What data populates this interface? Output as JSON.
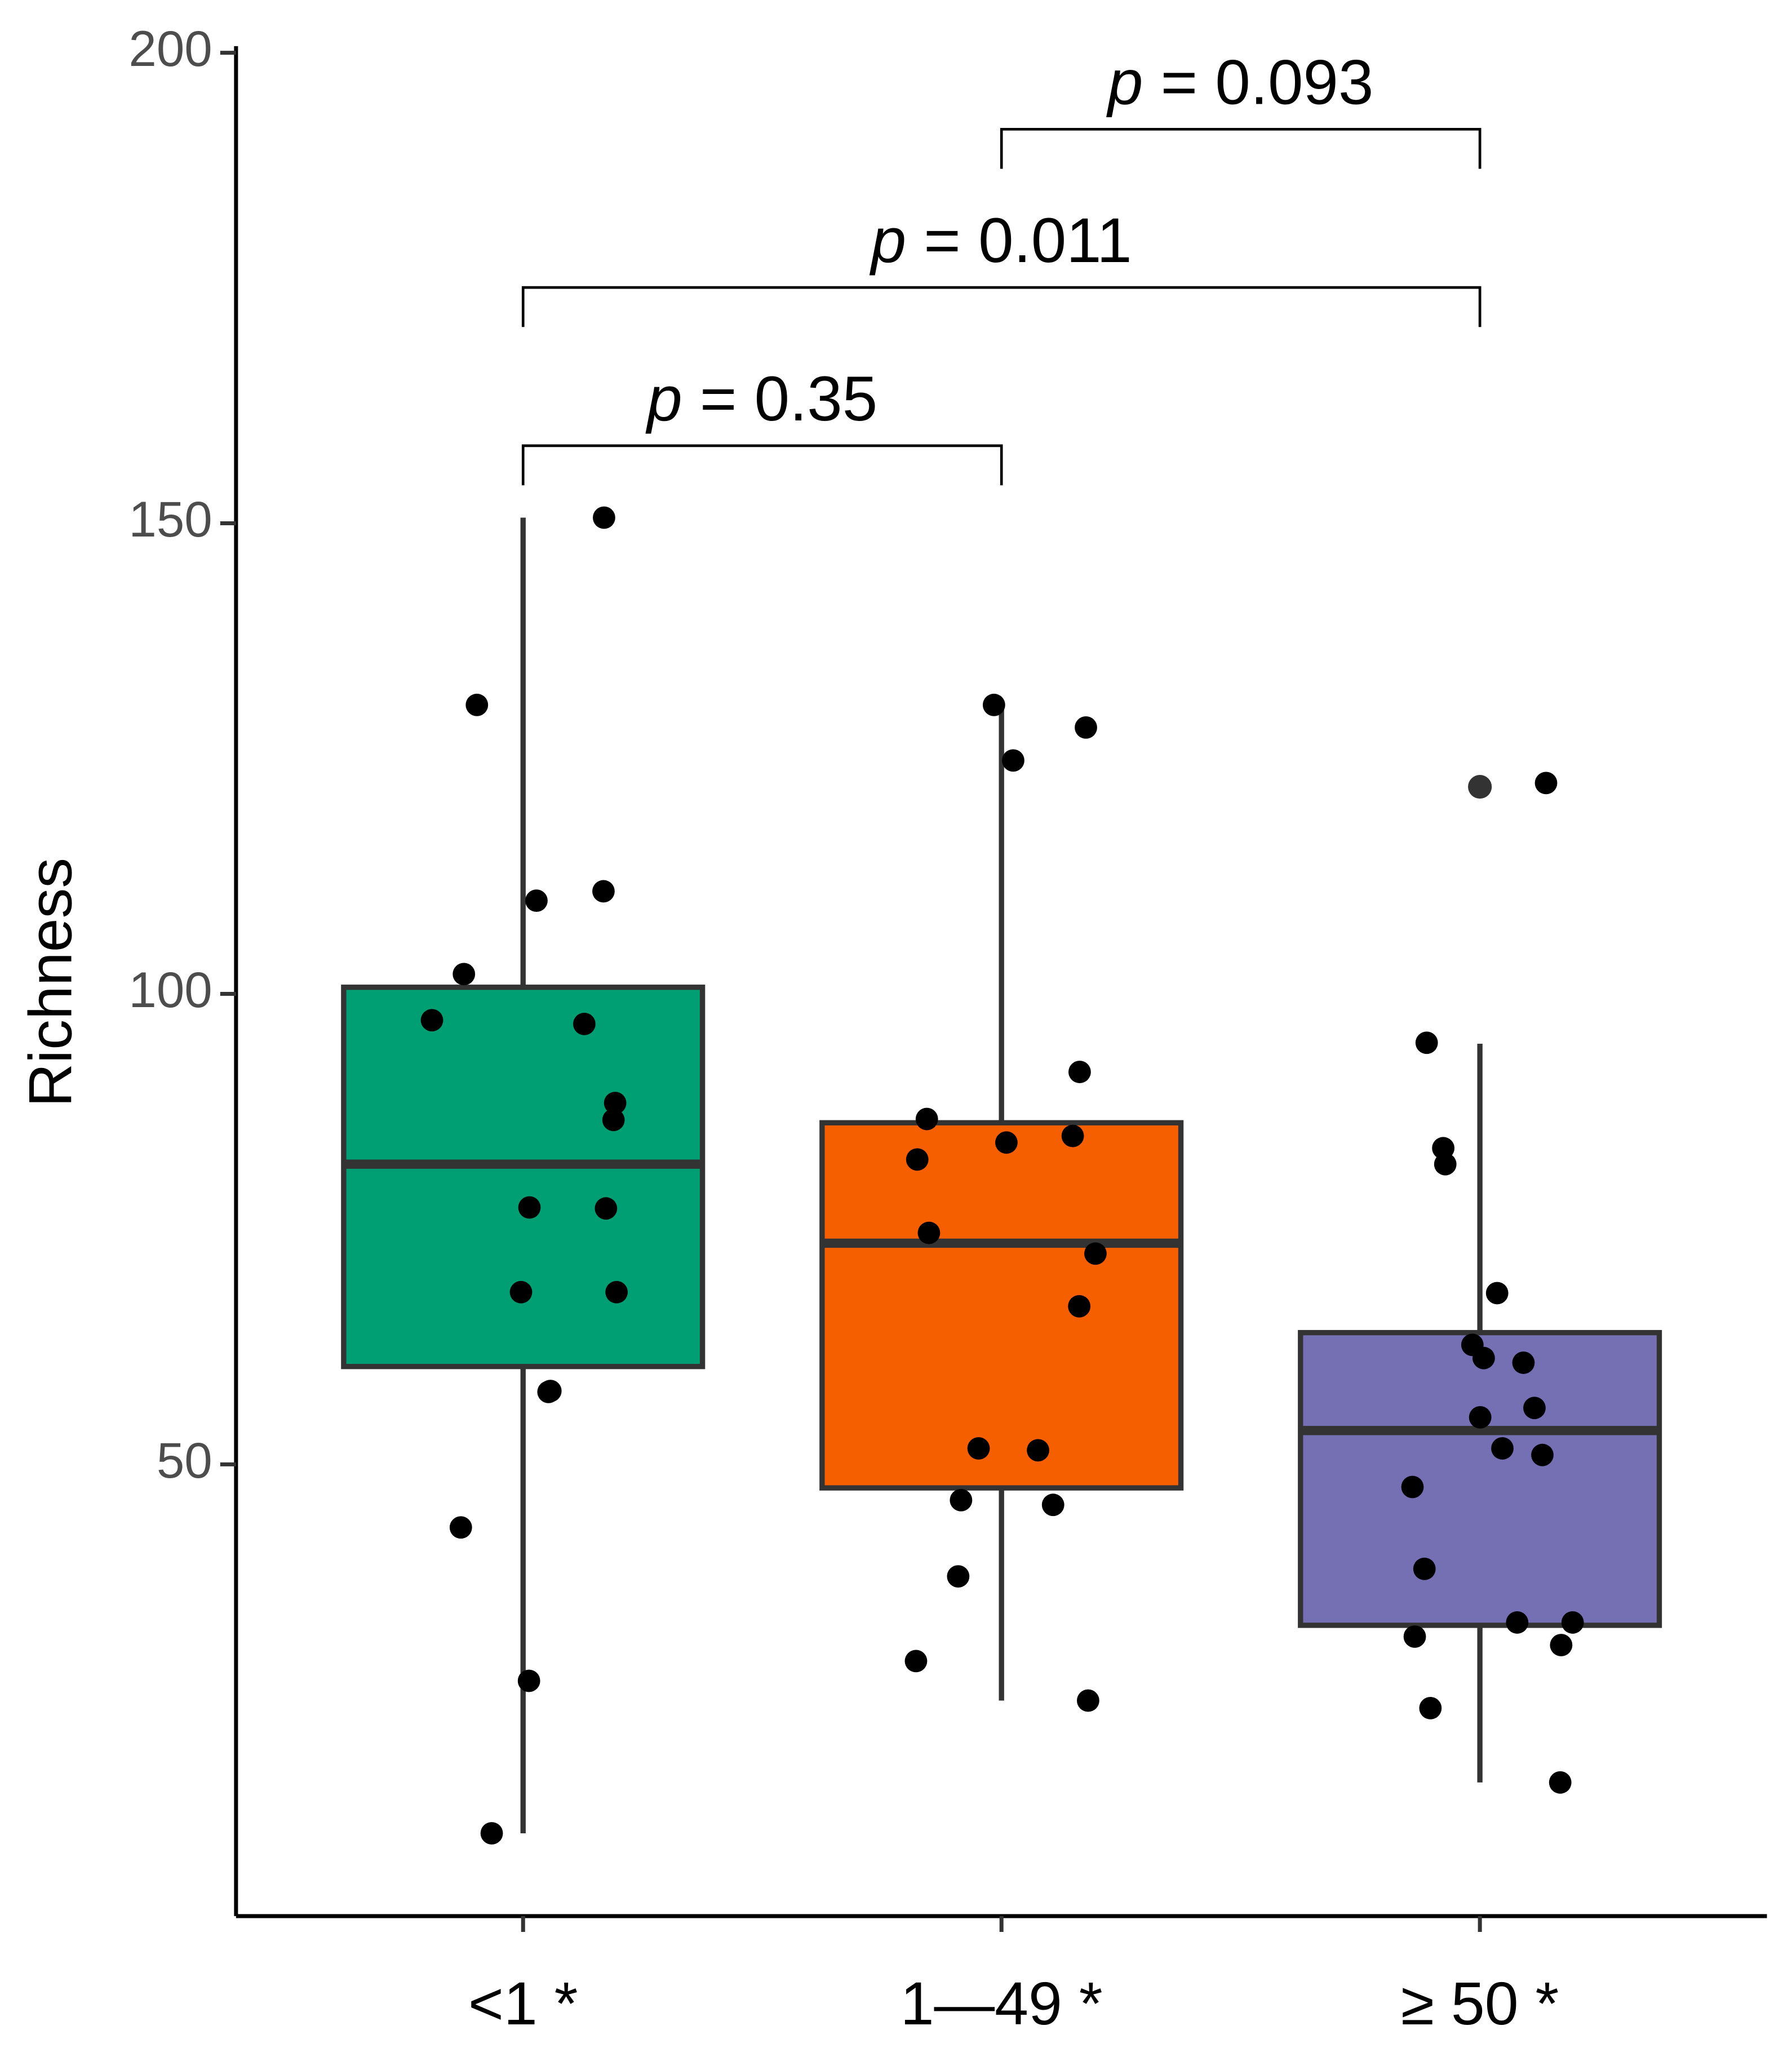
{
  "chart_data": {
    "type": "box",
    "y_label": "Richness",
    "categories": [
      "<1 *",
      "1—49 *",
      "≥ 50 *"
    ],
    "ylim": [
      2,
      200
    ],
    "yticks": [
      50,
      100,
      150,
      200
    ],
    "boxes": [
      {
        "color": "#009e73",
        "whisker_low": 10.8,
        "q1": 60.4,
        "median": 81.9,
        "q3": 100.7,
        "whisker_high": 150.6,
        "outliers": [],
        "points": [
          150.6,
          130.7,
          110.9,
          109.9,
          102.1,
          97.2,
          96.8,
          88.4,
          86.6,
          77.3,
          77.2,
          68.3,
          68.3,
          57.7,
          57.8,
          43.3,
          27.0,
          10.8
        ]
      },
      {
        "color": "#f55f00",
        "whisker_low": 24.9,
        "q1": 47.5,
        "median": 73.5,
        "q3": 86.3,
        "whisker_high": 130.7,
        "outliers": [],
        "points": [
          128.3,
          130.7,
          124.8,
          91.7,
          86.7,
          84.9,
          84.2,
          82.4,
          74.6,
          72.4,
          66.8,
          51.7,
          51.5,
          46.2,
          45.7,
          38.1,
          29.1,
          24.9
        ]
      },
      {
        "color": "#7570b3",
        "whisker_low": 16.2,
        "q1": 32.9,
        "median": 53.6,
        "q3": 64.0,
        "whisker_high": 94.7,
        "outliers": [
          122.0
        ],
        "points": [
          122.4,
          94.8,
          81.9,
          83.6,
          68.2,
          62.7,
          60.8,
          61.3,
          56.0,
          55.0,
          51.0,
          51.7,
          47.6,
          38.9,
          33.2,
          33.2,
          31.7,
          30.8,
          24.1,
          16.2
        ]
      }
    ],
    "comparisons": [
      {
        "groups": [
          "<1 *",
          "1—49 *"
        ],
        "label": "p = 0.35"
      },
      {
        "groups": [
          "<1 *",
          "≥ 50 *"
        ],
        "label": "p = 0.011"
      },
      {
        "groups": [
          "1—49 *",
          "≥ 50 *"
        ],
        "label": "p = 0.093"
      }
    ]
  }
}
